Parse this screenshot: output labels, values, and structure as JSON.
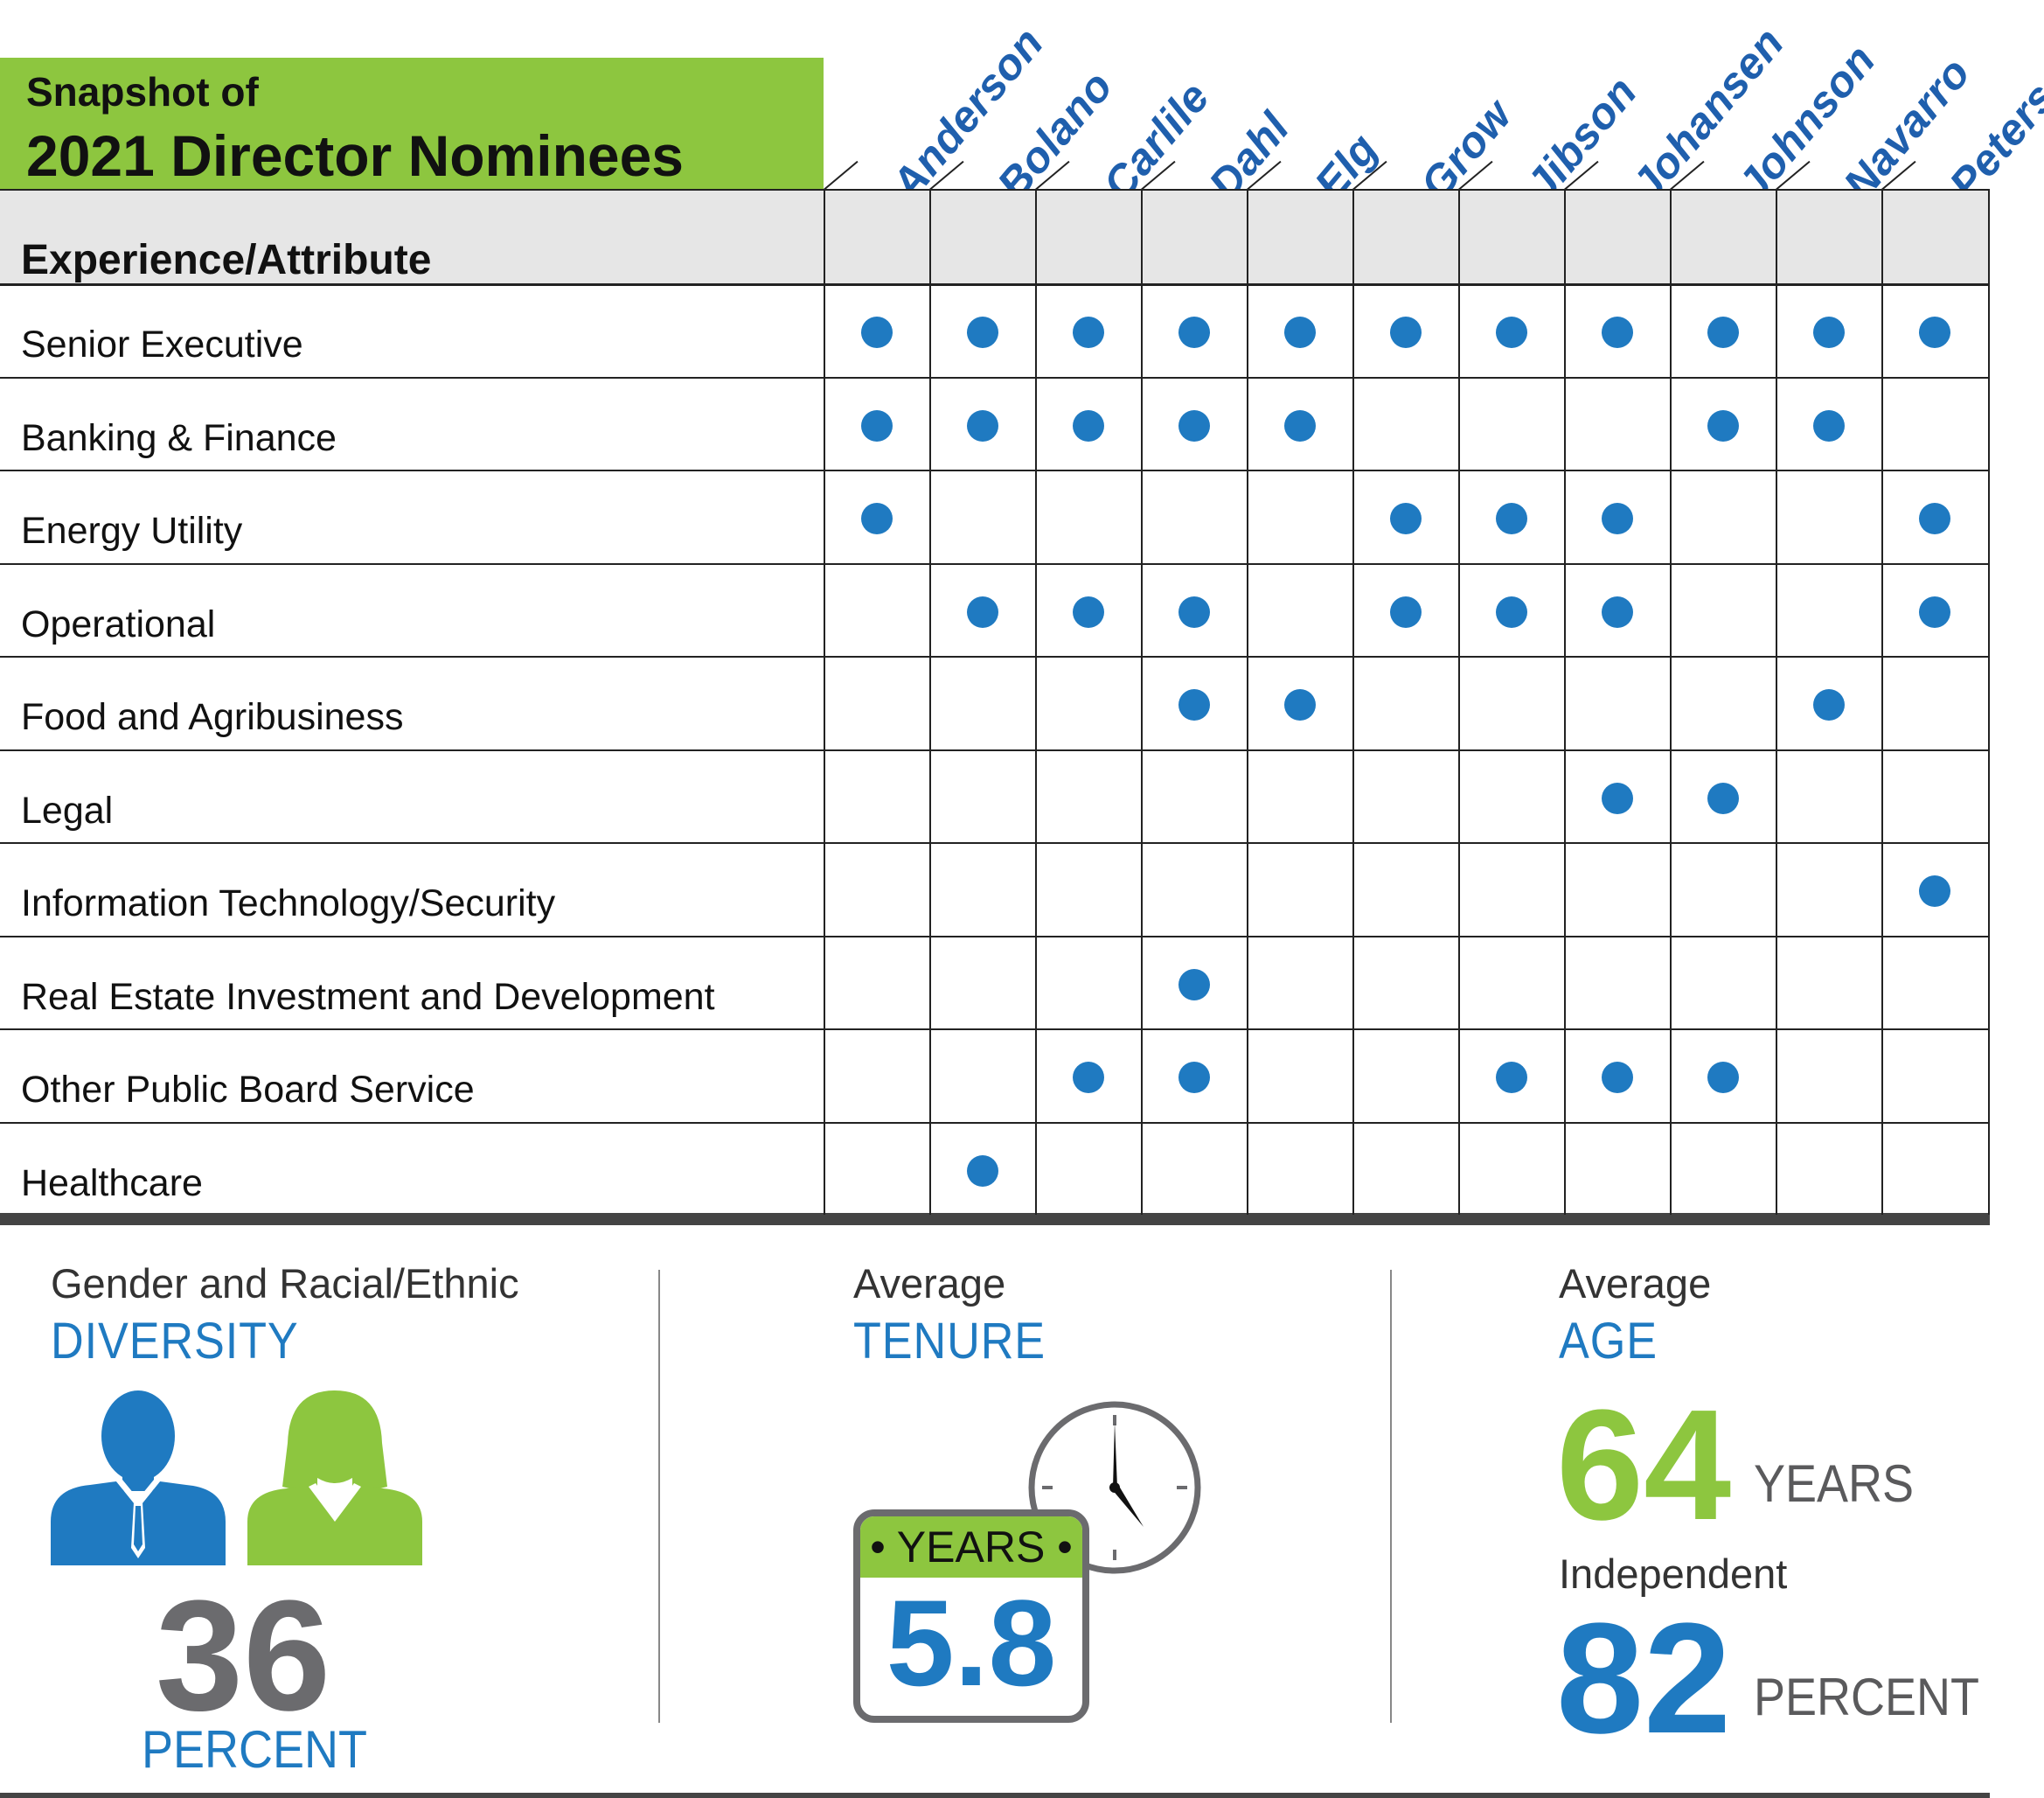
{
  "title": {
    "line1": "Snapshot of",
    "line2": "2021 Director Nominees"
  },
  "directors": [
    "Anderson",
    "Bolano",
    "Carlile",
    "Dahl",
    "Elg",
    "Grow",
    "Jibson",
    "Johansen",
    "Johnson",
    "Navarro",
    "Peters"
  ],
  "header_label": "Experience/Attribute",
  "attributes": [
    {
      "label": "Senior Executive",
      "marks": [
        1,
        1,
        1,
        1,
        1,
        1,
        1,
        1,
        1,
        1,
        1
      ]
    },
    {
      "label": "Banking & Finance",
      "marks": [
        1,
        1,
        1,
        1,
        1,
        0,
        0,
        0,
        1,
        1,
        0
      ]
    },
    {
      "label": "Energy Utility",
      "marks": [
        1,
        0,
        0,
        0,
        0,
        1,
        1,
        1,
        0,
        0,
        1
      ]
    },
    {
      "label": "Operational",
      "marks": [
        0,
        1,
        1,
        1,
        0,
        1,
        1,
        1,
        0,
        0,
        1
      ]
    },
    {
      "label": "Food and Agribusiness",
      "marks": [
        0,
        0,
        0,
        1,
        1,
        0,
        0,
        0,
        0,
        1,
        0
      ]
    },
    {
      "label": "Legal",
      "marks": [
        0,
        0,
        0,
        0,
        0,
        0,
        0,
        1,
        1,
        0,
        0
      ]
    },
    {
      "label": "Information Technology/Security",
      "marks": [
        0,
        0,
        0,
        0,
        0,
        0,
        0,
        0,
        0,
        0,
        1
      ]
    },
    {
      "label": "Real Estate Investment and Development",
      "marks": [
        0,
        0,
        0,
        1,
        0,
        0,
        0,
        0,
        0,
        0,
        0
      ]
    },
    {
      "label": "Other Public Board Service",
      "marks": [
        0,
        0,
        1,
        1,
        0,
        0,
        1,
        1,
        1,
        0,
        0
      ]
    },
    {
      "label": "Healthcare",
      "marks": [
        0,
        1,
        0,
        0,
        0,
        0,
        0,
        0,
        0,
        0,
        0
      ]
    }
  ],
  "stats": {
    "diversity": {
      "label_small": "Gender and Racial/Ethnic",
      "label_head": "DIVERSITY",
      "value": "36",
      "unit": "PERCENT"
    },
    "tenure": {
      "label_small": "Average",
      "label_head": "TENURE",
      "badge": "• YEARS •",
      "value": "5.8"
    },
    "age": {
      "label_small": "Average",
      "label_head": "AGE",
      "value": "64",
      "unit": "YEARS"
    },
    "independent": {
      "label_small": "Independent",
      "value": "82",
      "unit": "PERCENT"
    }
  },
  "colors": {
    "green": "#8dc63f",
    "blue": "#1f7ac1",
    "dark_blue": "#1f5fad",
    "gray": "#6b6b6e"
  }
}
